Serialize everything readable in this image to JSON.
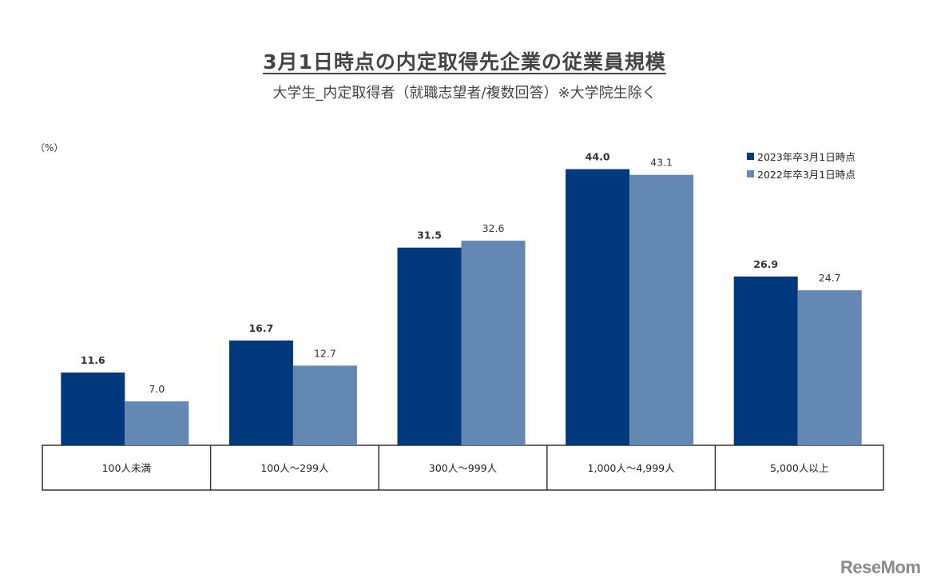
{
  "title": "3月1日時点の内定取得先企業の従業員規模",
  "subtitle": "大学生_内定取得者（就職志望者/複数回答）※大学院生除く",
  "unit": "（%）",
  "colors": {
    "series_2023": "#003a7d",
    "series_2022": "#6588b3"
  },
  "logo": "ReseMom",
  "chart_data": {
    "type": "bar",
    "categories": [
      "100人未満",
      "100人～299人",
      "300人～999人",
      "1,000人～4,999人",
      "5,000人以上"
    ],
    "series": [
      {
        "name": "2023年卒3月1日時点",
        "values": [
          11.6,
          16.7,
          31.5,
          44.0,
          26.9
        ],
        "labels": [
          "11.6",
          "16.7",
          "31.5",
          "44.0",
          "26.9"
        ]
      },
      {
        "name": "2022年卒3月1日時点",
        "values": [
          7.0,
          12.7,
          32.6,
          43.1,
          24.7
        ],
        "labels": [
          "7.0",
          "12.7",
          "32.6",
          "43.1",
          "24.7"
        ]
      }
    ],
    "ylim": [
      0,
      50
    ],
    "legend": "top-right",
    "grid": false
  }
}
